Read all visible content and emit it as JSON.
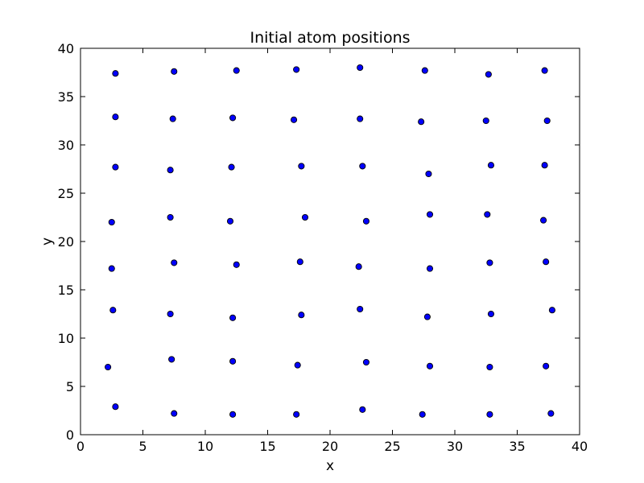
{
  "chart_data": {
    "type": "scatter",
    "title": "Initial atom positions",
    "xlabel": "x",
    "ylabel": "y",
    "xlim": [
      0,
      40
    ],
    "ylim": [
      0,
      40
    ],
    "xticks": [
      0,
      5,
      10,
      15,
      20,
      25,
      30,
      35,
      40
    ],
    "yticks": [
      0,
      5,
      10,
      15,
      20,
      25,
      30,
      35,
      40
    ],
    "grid": false,
    "marker_color": "#0000ff",
    "marker_edge_color": "#000000",
    "series": [
      {
        "points": [
          [
            2.8,
            37.4
          ],
          [
            7.5,
            37.6
          ],
          [
            12.5,
            37.7
          ],
          [
            17.3,
            37.8
          ],
          [
            22.4,
            38.0
          ],
          [
            27.6,
            37.7
          ],
          [
            32.7,
            37.3
          ],
          [
            37.2,
            37.7
          ],
          [
            2.8,
            32.9
          ],
          [
            7.4,
            32.7
          ],
          [
            12.2,
            32.8
          ],
          [
            17.1,
            32.6
          ],
          [
            22.4,
            32.7
          ],
          [
            27.3,
            32.4
          ],
          [
            32.5,
            32.5
          ],
          [
            37.4,
            32.5
          ],
          [
            2.8,
            27.7
          ],
          [
            7.2,
            27.4
          ],
          [
            12.1,
            27.7
          ],
          [
            17.7,
            27.8
          ],
          [
            22.6,
            27.8
          ],
          [
            27.9,
            27.0
          ],
          [
            32.9,
            27.9
          ],
          [
            37.2,
            27.9
          ],
          [
            2.5,
            22.0
          ],
          [
            7.2,
            22.5
          ],
          [
            12.0,
            22.1
          ],
          [
            18.0,
            22.5
          ],
          [
            22.9,
            22.1
          ],
          [
            28.0,
            22.8
          ],
          [
            32.6,
            22.8
          ],
          [
            37.1,
            22.2
          ],
          [
            2.5,
            17.2
          ],
          [
            7.5,
            17.8
          ],
          [
            12.5,
            17.6
          ],
          [
            17.6,
            17.9
          ],
          [
            22.3,
            17.4
          ],
          [
            28.0,
            17.2
          ],
          [
            32.8,
            17.8
          ],
          [
            37.3,
            17.9
          ],
          [
            2.6,
            12.9
          ],
          [
            7.2,
            12.5
          ],
          [
            12.2,
            12.1
          ],
          [
            17.7,
            12.4
          ],
          [
            22.4,
            13.0
          ],
          [
            27.8,
            12.2
          ],
          [
            32.9,
            12.5
          ],
          [
            37.8,
            12.9
          ],
          [
            2.2,
            7.0
          ],
          [
            7.3,
            7.8
          ],
          [
            12.2,
            7.6
          ],
          [
            17.4,
            7.2
          ],
          [
            22.9,
            7.5
          ],
          [
            28.0,
            7.1
          ],
          [
            32.8,
            7.0
          ],
          [
            37.3,
            7.1
          ],
          [
            2.8,
            2.9
          ],
          [
            7.5,
            2.2
          ],
          [
            12.2,
            2.1
          ],
          [
            17.3,
            2.1
          ],
          [
            22.6,
            2.6
          ],
          [
            27.4,
            2.1
          ],
          [
            32.8,
            2.1
          ],
          [
            37.7,
            2.2
          ]
        ]
      }
    ]
  }
}
